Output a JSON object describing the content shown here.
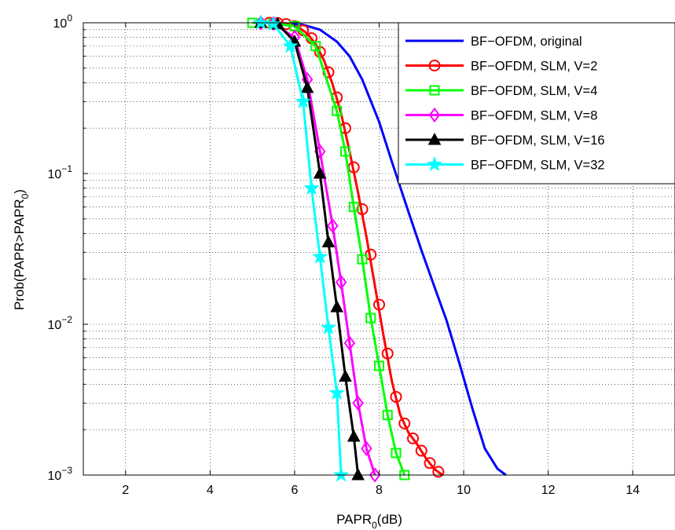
{
  "chart_data": {
    "type": "line",
    "title": "",
    "xlabel": {
      "main": "PAPR",
      "sub": "0",
      "suffix": "(dB)"
    },
    "ylabel": {
      "main": "Prob(PAPR>PAPR",
      "sub": "0",
      "suffix": ")"
    },
    "xlim": [
      1,
      15
    ],
    "ylim": [
      0.001,
      1
    ],
    "yscale": "log",
    "grid": true,
    "legend_position": "top-right",
    "x_ticks": [
      2,
      4,
      6,
      8,
      10,
      12,
      14
    ],
    "y_ticks": [
      {
        "value": 1,
        "base": "10",
        "exp": "0"
      },
      {
        "value": 0.1,
        "base": "10",
        "exp": "−1"
      },
      {
        "value": 0.01,
        "base": "10",
        "exp": "−2"
      },
      {
        "value": 0.001,
        "base": "10",
        "exp": "−3"
      }
    ],
    "series": [
      {
        "name": "BF−OFDM, original",
        "color": "#0000ff",
        "marker": "none",
        "x": [
          5.2,
          5.8,
          6.2,
          6.6,
          7.0,
          7.3,
          7.6,
          8.0,
          8.3,
          8.7,
          9.0,
          9.3,
          9.6,
          9.9,
          10.2,
          10.5,
          10.8,
          11.0
        ],
        "y": [
          1.0,
          0.99,
          0.97,
          0.9,
          0.75,
          0.6,
          0.42,
          0.22,
          0.12,
          0.055,
          0.031,
          0.018,
          0.0105,
          0.0055,
          0.0028,
          0.0015,
          0.0011,
          0.001
        ]
      },
      {
        "name": "BF−OFDM, SLM, V=2",
        "color": "#ff0000",
        "marker": "circle",
        "x": [
          5.3,
          5.5,
          5.7,
          5.9,
          6.1,
          6.3,
          6.5,
          6.7,
          6.9,
          7.1,
          7.3,
          7.5,
          7.7,
          7.9,
          8.1,
          8.3,
          8.5,
          8.7,
          8.9,
          9.1,
          9.3,
          9.5
        ],
        "y": [
          1.0,
          1.0,
          0.99,
          0.97,
          0.93,
          0.85,
          0.72,
          0.56,
          0.39,
          0.25,
          0.14,
          0.075,
          0.038,
          0.018,
          0.0085,
          0.0042,
          0.0025,
          0.0019,
          0.0016,
          0.0013,
          0.0011,
          0.001
        ],
        "marker_x": [
          5.4,
          5.6,
          5.8,
          6.0,
          6.2,
          6.4,
          6.6,
          6.8,
          7.0,
          7.2,
          7.4,
          7.6,
          7.8,
          8.0,
          8.2,
          8.4,
          8.6,
          8.8,
          9.0,
          9.2,
          9.4
        ],
        "marker_y": [
          1.0,
          0.995,
          0.98,
          0.95,
          0.89,
          0.79,
          0.64,
          0.47,
          0.32,
          0.2,
          0.11,
          0.058,
          0.029,
          0.0135,
          0.0064,
          0.0033,
          0.0022,
          0.00175,
          0.00145,
          0.0012,
          0.00105
        ]
      },
      {
        "name": "BF−OFDM, SLM, V=4",
        "color": "#00ff00",
        "marker": "square",
        "x": [
          5.0,
          5.5,
          6.0,
          6.5,
          7.0,
          7.2,
          7.4,
          7.6,
          7.8,
          8.0,
          8.2,
          8.4,
          8.6
        ],
        "y": [
          1.0,
          0.99,
          0.95,
          0.7,
          0.26,
          0.14,
          0.06,
          0.027,
          0.011,
          0.0053,
          0.0025,
          0.0014,
          0.001
        ]
      },
      {
        "name": "BF−OFDM, SLM, V=8",
        "color": "#ff00ff",
        "marker": "diamond",
        "x": [
          5.2,
          5.5,
          6.0,
          6.3,
          6.6,
          6.9,
          7.1,
          7.3,
          7.5,
          7.7,
          7.9
        ],
        "y": [
          1.0,
          0.99,
          0.8,
          0.42,
          0.14,
          0.045,
          0.019,
          0.0075,
          0.003,
          0.0015,
          0.001
        ]
      },
      {
        "name": "BF−OFDM, SLM, V=16",
        "color": "#000000",
        "marker": "triangle",
        "x": [
          5.2,
          5.6,
          6.0,
          6.3,
          6.6,
          6.8,
          7.0,
          7.2,
          7.4,
          7.5
        ],
        "y": [
          1.0,
          0.98,
          0.75,
          0.37,
          0.1,
          0.035,
          0.013,
          0.0045,
          0.0018,
          0.001
        ]
      },
      {
        "name": "BF−OFDM, SLM, V=32",
        "color": "#00ffff",
        "marker": "star",
        "x": [
          5.2,
          5.5,
          5.9,
          6.2,
          6.4,
          6.6,
          6.8,
          7.0,
          7.1
        ],
        "y": [
          1.0,
          0.98,
          0.7,
          0.3,
          0.08,
          0.028,
          0.0095,
          0.0035,
          0.001
        ]
      }
    ]
  }
}
